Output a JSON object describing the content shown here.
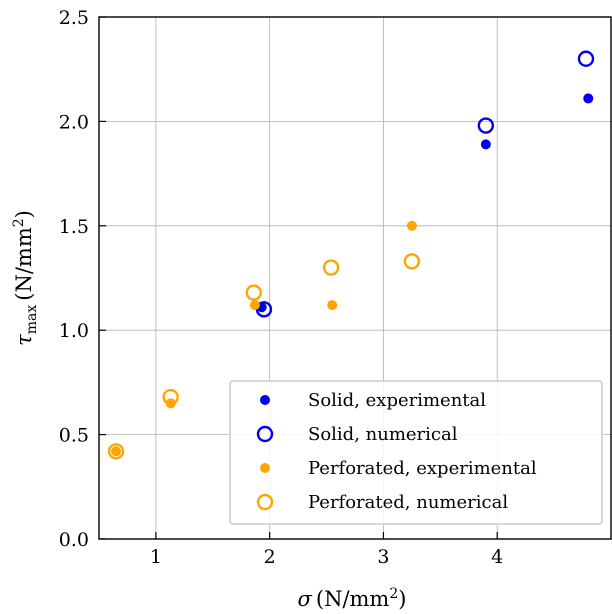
{
  "chart_data": {
    "type": "scatter",
    "xlabel": {
      "symbol": "σ",
      "unit_open": "(",
      "unit_base": "N/mm",
      "unit_exp": "2",
      "unit_close": ")"
    },
    "ylabel": {
      "symbol": "τ",
      "sub": "max",
      "unit_open": "(",
      "unit_base": "N/mm",
      "unit_exp": "2",
      "unit_close": ")"
    },
    "xlim": [
      0.5,
      5.0
    ],
    "ylim": [
      0.0,
      2.5
    ],
    "xticks": [
      1,
      2,
      3,
      4
    ],
    "yticks": [
      0.0,
      0.5,
      1.0,
      1.5,
      2.0,
      2.5
    ],
    "ytick_labels": [
      "0.0",
      "0.5",
      "1.0",
      "1.5",
      "2.0",
      "2.5"
    ],
    "grid": true,
    "legend_position": "lower-right",
    "series": [
      {
        "name": "Solid, experimental",
        "marker": "filled-circle",
        "color": "#0000ee",
        "points": [
          [
            1.93,
            1.11
          ],
          [
            3.9,
            1.89
          ],
          [
            4.8,
            2.11
          ]
        ]
      },
      {
        "name": "Solid, numerical",
        "marker": "open-circle",
        "color": "#0000ee",
        "points": [
          [
            1.95,
            1.1
          ],
          [
            3.9,
            1.98
          ],
          [
            4.78,
            2.3
          ]
        ]
      },
      {
        "name": "Perforated, experimental",
        "marker": "filled-circle",
        "color": "#ffa500",
        "points": [
          [
            0.65,
            0.42
          ],
          [
            1.13,
            0.65
          ],
          [
            1.87,
            1.12
          ],
          [
            2.55,
            1.12
          ],
          [
            3.25,
            1.5
          ]
        ]
      },
      {
        "name": "Perforated, numerical",
        "marker": "open-circle",
        "color": "#ffa500",
        "points": [
          [
            0.65,
            0.42
          ],
          [
            1.13,
            0.68
          ],
          [
            1.86,
            1.18
          ],
          [
            2.54,
            1.3
          ],
          [
            3.25,
            1.33
          ]
        ]
      }
    ]
  }
}
